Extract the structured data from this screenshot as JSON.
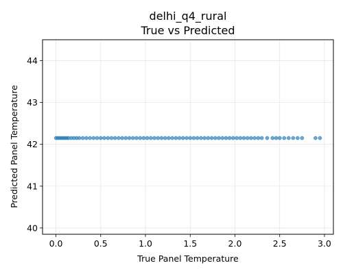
{
  "chart_data": {
    "type": "scatter",
    "title_line1": "delhi_q4_rural",
    "title_line2": "True vs Predicted",
    "xlabel": "True Panel Temperature",
    "ylabel": "Predicted Panel Temperature",
    "xlim": [
      -0.15,
      3.1
    ],
    "ylim": [
      39.85,
      44.5
    ],
    "x_ticks": [
      0.0,
      0.5,
      1.0,
      1.5,
      2.0,
      2.5,
      3.0
    ],
    "x_tick_labels": [
      "0.0",
      "0.5",
      "1.0",
      "1.5",
      "2.0",
      "2.5",
      "3.0"
    ],
    "y_ticks": [
      40,
      41,
      42,
      43,
      44
    ],
    "y_tick_labels": [
      "40",
      "41",
      "42",
      "43",
      "44"
    ],
    "grid": true,
    "color": "#1f77b4",
    "predicted_value": 42.15,
    "points": [
      {
        "x": 0.0,
        "y": 42.15
      },
      {
        "x": 0.02,
        "y": 42.15
      },
      {
        "x": 0.04,
        "y": 42.15
      },
      {
        "x": 0.06,
        "y": 42.15
      },
      {
        "x": 0.08,
        "y": 42.15
      },
      {
        "x": 0.1,
        "y": 42.15
      },
      {
        "x": 0.12,
        "y": 42.15
      },
      {
        "x": 0.14,
        "y": 42.15
      },
      {
        "x": 0.17,
        "y": 42.15
      },
      {
        "x": 0.2,
        "y": 42.15
      },
      {
        "x": 0.23,
        "y": 42.15
      },
      {
        "x": 0.26,
        "y": 42.15
      },
      {
        "x": 0.3,
        "y": 42.15
      },
      {
        "x": 0.34,
        "y": 42.15
      },
      {
        "x": 0.38,
        "y": 42.15
      },
      {
        "x": 0.42,
        "y": 42.15
      },
      {
        "x": 0.46,
        "y": 42.15
      },
      {
        "x": 0.5,
        "y": 42.15
      },
      {
        "x": 0.54,
        "y": 42.15
      },
      {
        "x": 0.58,
        "y": 42.15
      },
      {
        "x": 0.62,
        "y": 42.15
      },
      {
        "x": 0.66,
        "y": 42.15
      },
      {
        "x": 0.7,
        "y": 42.15
      },
      {
        "x": 0.74,
        "y": 42.15
      },
      {
        "x": 0.78,
        "y": 42.15
      },
      {
        "x": 0.82,
        "y": 42.15
      },
      {
        "x": 0.86,
        "y": 42.15
      },
      {
        "x": 0.9,
        "y": 42.15
      },
      {
        "x": 0.94,
        "y": 42.15
      },
      {
        "x": 0.98,
        "y": 42.15
      },
      {
        "x": 1.02,
        "y": 42.15
      },
      {
        "x": 1.06,
        "y": 42.15
      },
      {
        "x": 1.1,
        "y": 42.15
      },
      {
        "x": 1.14,
        "y": 42.15
      },
      {
        "x": 1.18,
        "y": 42.15
      },
      {
        "x": 1.22,
        "y": 42.15
      },
      {
        "x": 1.26,
        "y": 42.15
      },
      {
        "x": 1.3,
        "y": 42.15
      },
      {
        "x": 1.34,
        "y": 42.15
      },
      {
        "x": 1.38,
        "y": 42.15
      },
      {
        "x": 1.42,
        "y": 42.15
      },
      {
        "x": 1.46,
        "y": 42.15
      },
      {
        "x": 1.5,
        "y": 42.15
      },
      {
        "x": 1.54,
        "y": 42.15
      },
      {
        "x": 1.58,
        "y": 42.15
      },
      {
        "x": 1.62,
        "y": 42.15
      },
      {
        "x": 1.66,
        "y": 42.15
      },
      {
        "x": 1.7,
        "y": 42.15
      },
      {
        "x": 1.74,
        "y": 42.15
      },
      {
        "x": 1.78,
        "y": 42.15
      },
      {
        "x": 1.82,
        "y": 42.15
      },
      {
        "x": 1.86,
        "y": 42.15
      },
      {
        "x": 1.9,
        "y": 42.15
      },
      {
        "x": 1.94,
        "y": 42.15
      },
      {
        "x": 1.98,
        "y": 42.15
      },
      {
        "x": 2.02,
        "y": 42.15
      },
      {
        "x": 2.06,
        "y": 42.15
      },
      {
        "x": 2.1,
        "y": 42.15
      },
      {
        "x": 2.14,
        "y": 42.15
      },
      {
        "x": 2.18,
        "y": 42.15
      },
      {
        "x": 2.22,
        "y": 42.15
      },
      {
        "x": 2.26,
        "y": 42.15
      },
      {
        "x": 2.3,
        "y": 42.15
      },
      {
        "x": 2.36,
        "y": 42.15
      },
      {
        "x": 2.42,
        "y": 42.15
      },
      {
        "x": 2.46,
        "y": 42.15
      },
      {
        "x": 2.5,
        "y": 42.15
      },
      {
        "x": 2.55,
        "y": 42.15
      },
      {
        "x": 2.6,
        "y": 42.15
      },
      {
        "x": 2.65,
        "y": 42.15
      },
      {
        "x": 2.7,
        "y": 42.15
      },
      {
        "x": 2.75,
        "y": 42.15
      },
      {
        "x": 2.9,
        "y": 42.15
      },
      {
        "x": 2.95,
        "y": 42.15
      }
    ]
  }
}
